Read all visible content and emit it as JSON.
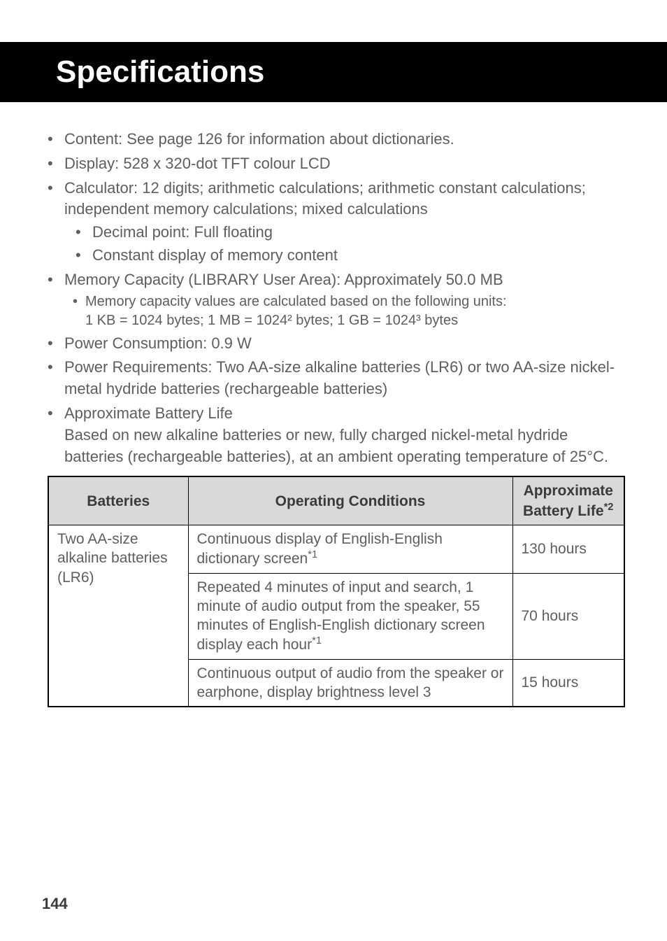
{
  "title": "Specifications",
  "page_number": "144",
  "bullets": {
    "content": "Content: See page 126 for information about dictionaries.",
    "display": "Display: 528 x 320-dot TFT colour LCD",
    "calculator": "Calculator: 12 digits; arithmetic calculations; arithmetic constant calculations; independent memory calculations; mixed calculations",
    "calc_sub1": "Decimal point: Full floating",
    "calc_sub2": "Constant display of memory content",
    "memory": "Memory Capacity (LIBRARY User Area): Approximately 50.0 MB",
    "memory_sub1": "Memory capacity values are calculated based on the following units:",
    "memory_sub1_line2": "1 KB = 1024 bytes; 1 MB = 1024² bytes; 1 GB = 1024³ bytes",
    "power_consumption": "Power Consumption: 0.9 W",
    "power_req": "Power Requirements: Two AA-size alkaline batteries (LR6) or two AA-size nickel-metal hydride batteries (rechargeable batteries)",
    "battery_life": "Approximate Battery Life",
    "battery_life_cont": "Based on new alkaline batteries or new, fully charged nickel-metal hydride batteries (rechargeable batteries), at an ambient operating temperature of 25°C."
  },
  "table": {
    "headers": {
      "col1": "Batteries",
      "col2": "Operating Conditions",
      "col3_line1": "Approximate",
      "col3_line2": "Battery Life",
      "col3_sup": "*2"
    },
    "rows": {
      "battery_cell": "Two AA-size alkaline batteries (LR6)",
      "r1_cond": "Continuous display of English-English dictionary screen",
      "r1_cond_sup": "*1",
      "r1_life": "130 hours",
      "r2_cond": "Repeated 4 minutes of input and search, 1 minute of audio output from the speaker, 55 minutes of English-English dictionary screen display each hour",
      "r2_cond_sup": "*1",
      "r2_life": "70 hours",
      "r3_cond": "Continuous output of audio from the speaker or earphone, display brightness level 3",
      "r3_life": "15 hours"
    }
  },
  "styling": {
    "banner_bg": "#000000",
    "banner_fg": "#ffffff",
    "body_text_color": "#5e5e5e",
    "table_header_bg": "#d9d9d9",
    "table_border": "#000000",
    "title_fontsize": 44,
    "body_fontsize": 22,
    "table_fontsize": 21
  }
}
